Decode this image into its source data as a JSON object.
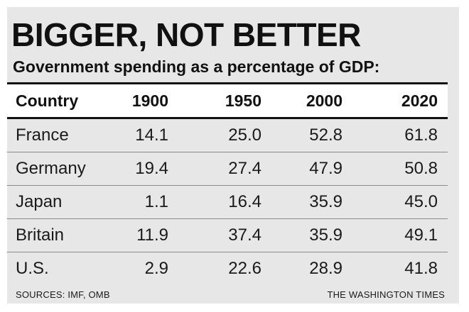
{
  "chart_data": {
    "type": "table",
    "title": "BIGGER, NOT BETTER",
    "subtitle": "Government spending as a percentage of GDP:",
    "columns": [
      "Country",
      "1900",
      "1950",
      "2000",
      "2020"
    ],
    "rows": [
      {
        "country": "France",
        "values": [
          "14.1",
          "25.0",
          "52.8",
          "61.8"
        ]
      },
      {
        "country": "Germany",
        "values": [
          "19.4",
          "27.4",
          "47.9",
          "50.8"
        ]
      },
      {
        "country": "Japan",
        "values": [
          "1.1",
          "16.4",
          "35.9",
          "45.0"
        ]
      },
      {
        "country": "Britain",
        "values": [
          "11.9",
          "37.4",
          "35.9",
          "49.1"
        ]
      },
      {
        "country": "U.S.",
        "values": [
          "2.9",
          "22.6",
          "28.9",
          "41.8"
        ]
      }
    ],
    "sources": "SOURCES: IMF, OMB",
    "credit": "THE WASHINGTON TIMES"
  },
  "colors": {
    "panel_background": "#e7e7e7",
    "header_background": "#ffffff",
    "text": "#111111",
    "rule": "#111111",
    "row_divider": "#8a8a8a"
  }
}
